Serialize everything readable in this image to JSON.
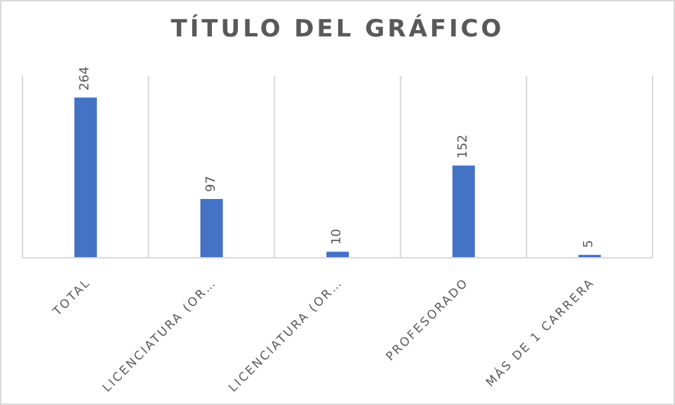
{
  "chart_data": {
    "type": "bar",
    "title": "TÍTULO DEL GRÁFICO",
    "categories": [
      "TOTAL",
      "LICENCIATURA (OR…",
      "LICENCIATURA (OR…",
      "PROFESORADO",
      "MÁS DE 1 CARRERA"
    ],
    "values": [
      264,
      97,
      10,
      152,
      5
    ],
    "color": "#4472c4",
    "ylim": [
      0,
      300
    ],
    "data_labels": true,
    "grid": "x"
  }
}
